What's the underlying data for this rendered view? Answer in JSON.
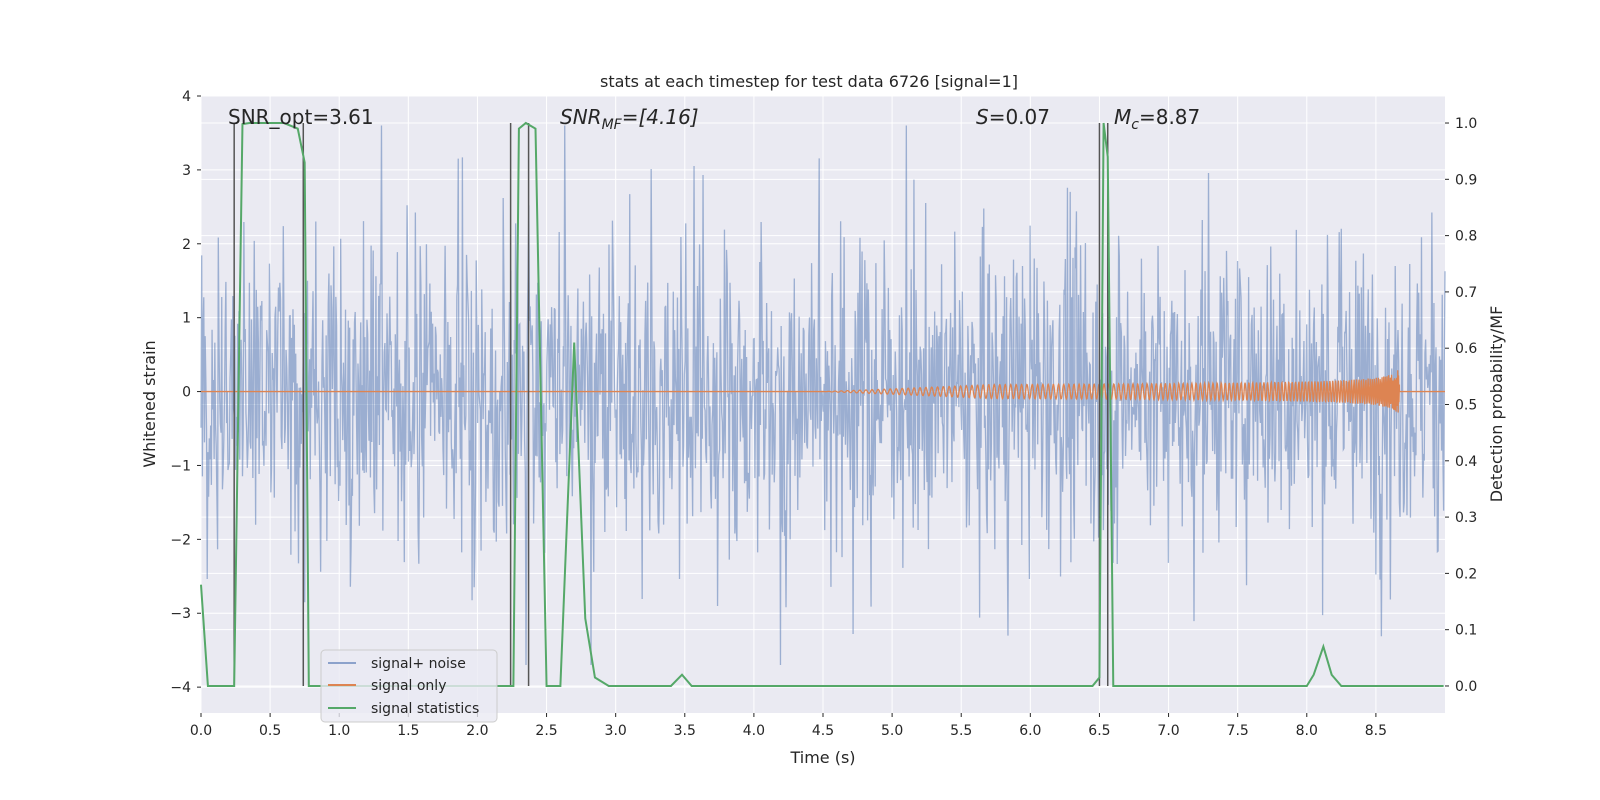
{
  "chart_data": {
    "type": "line",
    "title": "stats at each timestep for test data 6726 [signal=1]",
    "xlabel": "Time (s)",
    "ylabel": "Whitened strain",
    "y2label": "Detection probability/MF",
    "xlim": [
      0.0,
      9.0
    ],
    "ylim": [
      -4.35,
      4.0
    ],
    "y2lim": [
      -0.048,
      1.048
    ],
    "xticks": [
      "0.0",
      "0.5",
      "1.0",
      "1.5",
      "2.0",
      "2.5",
      "3.0",
      "3.5",
      "4.0",
      "4.5",
      "5.0",
      "5.5",
      "6.0",
      "6.5",
      "7.0",
      "7.5",
      "8.0",
      "8.5"
    ],
    "yticks": [
      "−4",
      "−3",
      "−2",
      "−1",
      "0",
      "1",
      "2",
      "3",
      "4"
    ],
    "y2ticks": [
      "0.0",
      "0.1",
      "0.2",
      "0.3",
      "0.4",
      "0.5",
      "0.6",
      "0.7",
      "0.8",
      "0.9",
      "1.0"
    ],
    "annotations": [
      {
        "prefix": "SNR_opt=",
        "value": "3.61"
      },
      {
        "prefix": "SNR",
        "sub": "MF",
        "suffix": "=[4.16]"
      },
      {
        "prefix": "S",
        "value": "=0.07"
      },
      {
        "prefix": "M",
        "sub": "c",
        "value": "=8.87"
      }
    ],
    "legend": {
      "placement": "lower-left",
      "entries": [
        "signal+ noise",
        "signal only",
        "signal statistics"
      ]
    },
    "colors": {
      "noise": "#4c72b0",
      "signal": "#dd8452",
      "stats": "#55a868",
      "vlines": "#555555",
      "background": "#eaeaf2",
      "grid": "#ffffff"
    },
    "series": [
      {
        "name": "signal+ noise",
        "kind": "noise",
        "amplitude_sigma": 1.0,
        "x_range": [
          0.0,
          9.0
        ]
      },
      {
        "name": "signal only",
        "kind": "chirp",
        "x_start": 4.5,
        "x_end": 8.67,
        "peak_amplitude": 0.6
      },
      {
        "name": "signal statistics",
        "axis": "right",
        "x": [
          0.0,
          0.05,
          0.12,
          0.2,
          0.24,
          0.27,
          0.3,
          0.35,
          0.4,
          0.5,
          0.6,
          0.7,
          0.75,
          0.78,
          0.82,
          0.9,
          1.0,
          1.5,
          2.0,
          2.1,
          2.2,
          2.26,
          2.3,
          2.35,
          2.42,
          2.5,
          2.6,
          2.7,
          2.78,
          2.85,
          2.95,
          3.0,
          3.4,
          3.48,
          3.55,
          4.0,
          5.0,
          6.0,
          6.45,
          6.5,
          6.53,
          6.56,
          6.6,
          6.65,
          7.0,
          7.5,
          8.0,
          8.05,
          8.12,
          8.18,
          8.25,
          8.5,
          8.99
        ],
        "values": [
          0.18,
          0.0,
          0.0,
          0.0,
          0.0,
          0.5,
          0.998,
          1.0,
          1.0,
          1.0,
          1.0,
          0.99,
          0.93,
          0.0,
          0.0,
          0.0,
          0.0,
          0.0,
          0.0,
          0.0,
          0.0,
          0.0,
          0.99,
          1.0,
          0.99,
          0.0,
          0.0,
          0.61,
          0.12,
          0.015,
          0.0,
          0.0,
          0.0,
          0.02,
          0.0,
          0.0,
          0.0,
          0.0,
          0.0,
          0.015,
          1.0,
          0.94,
          0.0,
          0.0,
          0.0,
          0.0,
          0.0,
          0.02,
          0.07,
          0.02,
          0.0,
          0.0,
          0.0
        ]
      },
      {
        "name": "vertical-markers",
        "x": [
          0.24,
          0.74,
          2.24,
          2.37,
          6.5,
          6.56
        ],
        "y2_top": 1.0
      }
    ]
  }
}
